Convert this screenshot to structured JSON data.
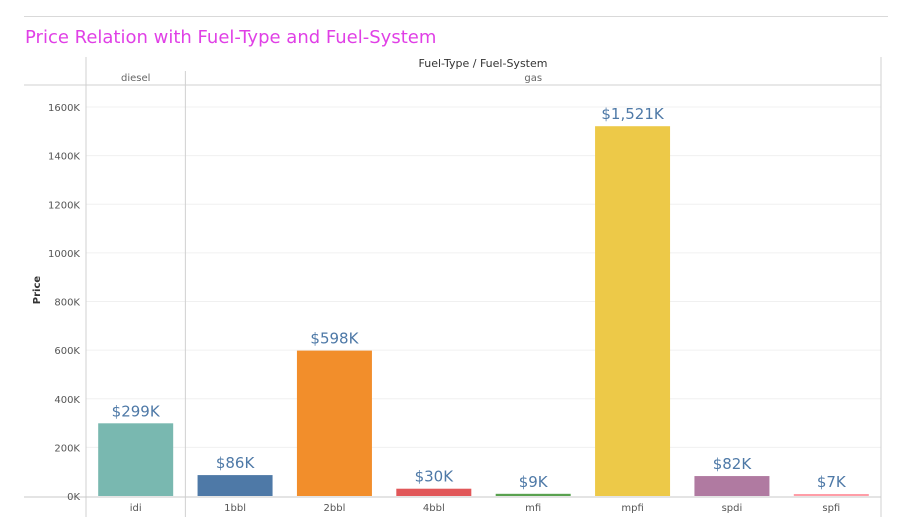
{
  "chart_data": {
    "type": "bar",
    "title": "Price Relation with Fuel-Type and Fuel-System",
    "column_header": "Fuel-Type / Fuel-System",
    "ylabel": "Price",
    "ylim": [
      0,
      1650000
    ],
    "yticks": [
      {
        "value": 0,
        "label": "0K"
      },
      {
        "value": 200000,
        "label": "200K"
      },
      {
        "value": 400000,
        "label": "400K"
      },
      {
        "value": 600000,
        "label": "600K"
      },
      {
        "value": 800000,
        "label": "800K"
      },
      {
        "value": 1000000,
        "label": "1000K"
      },
      {
        "value": 1200000,
        "label": "1200K"
      },
      {
        "value": 1400000,
        "label": "1400K"
      },
      {
        "value": 1600000,
        "label": "1600K"
      }
    ],
    "groups": [
      {
        "name": "diesel",
        "categories": [
          "idi"
        ]
      },
      {
        "name": "gas",
        "categories": [
          "1bbl",
          "2bbl",
          "4bbl",
          "mfi",
          "mpfi",
          "spdi",
          "spfi"
        ]
      }
    ],
    "categories": [
      "idi",
      "1bbl",
      "2bbl",
      "4bbl",
      "mfi",
      "mpfi",
      "spdi",
      "spfi"
    ],
    "values": [
      299000,
      86000,
      598000,
      30000,
      9000,
      1521000,
      82000,
      7000
    ],
    "data_labels": [
      "$299K",
      "$86K",
      "$598K",
      "$30K",
      "$9K",
      "$1,521K",
      "$82K",
      "$7K"
    ],
    "colors": [
      "#79b8b0",
      "#4e79a7",
      "#f28e2b",
      "#e15759",
      "#59a14f",
      "#edc948",
      "#b07aa1",
      "#ff9da7"
    ],
    "label_color": "#4e79a7",
    "grid": true
  }
}
